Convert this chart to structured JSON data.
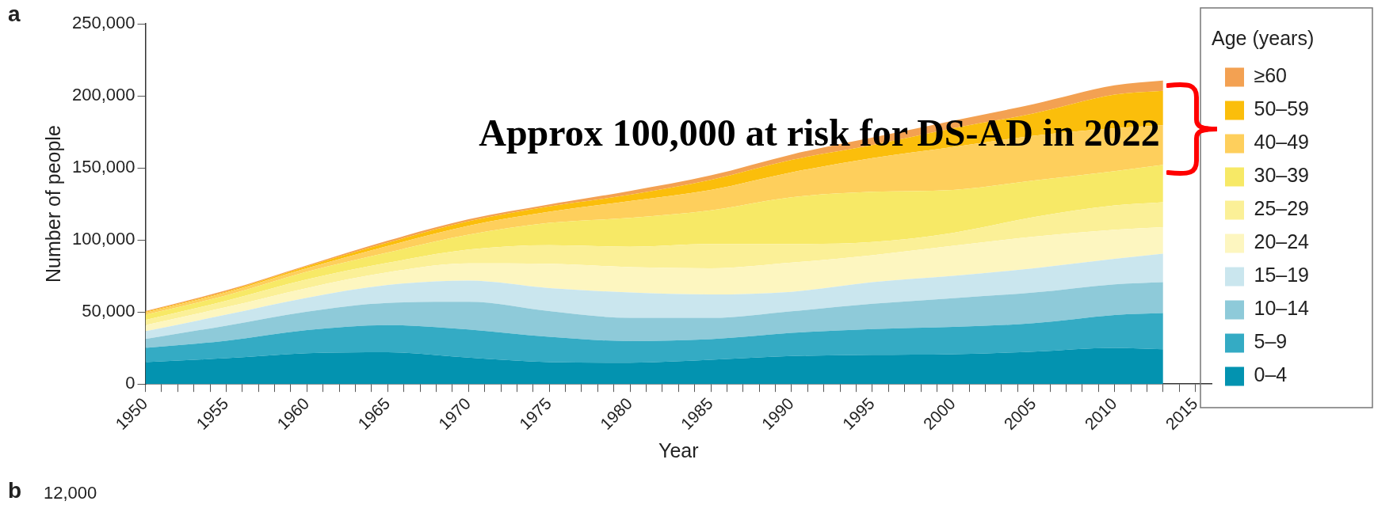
{
  "chart_data": {
    "type": "area",
    "stacked": true,
    "xlabel": "Year",
    "ylabel": "Number of people",
    "legend_title": "Age (years)",
    "legend": "right",
    "annotations": [
      "a",
      "Approx 100,000 at risk for DS-AD in 2022",
      "b",
      "12,000"
    ],
    "x": [
      1950,
      1955,
      1960,
      1965,
      1970,
      1975,
      1980,
      1985,
      1990,
      1995,
      2000,
      2005,
      2010,
      2013
    ],
    "xlim": [
      1950,
      2016
    ],
    "xticks": [
      1950,
      {
        "value": 1951,
        "label": null
      },
      {
        "value": 1952,
        "label": null
      },
      {
        "value": 1953,
        "label": null
      },
      {
        "value": 1954,
        "label": null
      },
      1955,
      {
        "value": 1956,
        "label": null
      },
      {
        "value": 1957,
        "label": null
      },
      {
        "value": 1958,
        "label": null
      },
      {
        "value": 1959,
        "label": null
      },
      1960,
      {
        "value": 1961,
        "label": null
      },
      {
        "value": 1962,
        "label": null
      },
      {
        "value": 1963,
        "label": null
      },
      {
        "value": 1964,
        "label": null
      },
      1965,
      {
        "value": 1966,
        "label": null
      },
      {
        "value": 1967,
        "label": null
      },
      {
        "value": 1968,
        "label": null
      },
      {
        "value": 1969,
        "label": null
      },
      1970,
      {
        "value": 1971,
        "label": null
      },
      {
        "value": 1972,
        "label": null
      },
      {
        "value": 1973,
        "label": null
      },
      {
        "value": 1974,
        "label": null
      },
      1975,
      {
        "value": 1976,
        "label": null
      },
      {
        "value": 1977,
        "label": null
      },
      {
        "value": 1978,
        "label": null
      },
      {
        "value": 1979,
        "label": null
      },
      1980,
      {
        "value": 1981,
        "label": null
      },
      {
        "value": 1982,
        "label": null
      },
      {
        "value": 1983,
        "label": null
      },
      {
        "value": 1984,
        "label": null
      },
      1985,
      {
        "value": 1986,
        "label": null
      },
      {
        "value": 1987,
        "label": null
      },
      {
        "value": 1988,
        "label": null
      },
      {
        "value": 1989,
        "label": null
      },
      1990,
      {
        "value": 1991,
        "label": null
      },
      {
        "value": 1992,
        "label": null
      },
      {
        "value": 1993,
        "label": null
      },
      {
        "value": 1994,
        "label": null
      },
      1995,
      {
        "value": 1996,
        "label": null
      },
      {
        "value": 1997,
        "label": null
      },
      {
        "value": 1998,
        "label": null
      },
      {
        "value": 1999,
        "label": null
      },
      2000,
      {
        "value": 2001,
        "label": null
      },
      {
        "value": 2002,
        "label": null
      },
      {
        "value": 2003,
        "label": null
      },
      {
        "value": 2004,
        "label": null
      },
      2005,
      {
        "value": 2006,
        "label": null
      },
      {
        "value": 2007,
        "label": null
      },
      {
        "value": 2008,
        "label": null
      },
      {
        "value": 2009,
        "label": null
      },
      2010,
      {
        "value": 2011,
        "label": null
      },
      {
        "value": 2012,
        "label": null
      },
      {
        "value": 2013,
        "label": null
      },
      {
        "value": 2014,
        "label": null
      },
      2015
    ],
    "ylim": [
      0,
      250000
    ],
    "yticks": [
      0,
      {
        "value": 50000,
        "label": "50,000"
      },
      {
        "value": 100000,
        "label": "100,000"
      },
      {
        "value": 150000,
        "label": "150,000"
      },
      {
        "value": 200000,
        "label": "200,000"
      },
      {
        "value": 250000,
        "label": "250,000"
      }
    ],
    "series": [
      {
        "name": "0–4",
        "color": "#0393b0",
        "values": [
          15200,
          17900,
          21400,
          22000,
          18300,
          15200,
          14800,
          16800,
          19400,
          20200,
          20700,
          22500,
          25100,
          24100
        ]
      },
      {
        "name": "5–9",
        "color": "#34abc4",
        "values": [
          9900,
          12100,
          16000,
          18900,
          19500,
          17500,
          15000,
          14300,
          16100,
          17900,
          18900,
          19700,
          22800,
          25100
        ]
      },
      {
        "name": "10–14",
        "color": "#8ecad9",
        "values": [
          6200,
          10500,
          12800,
          15400,
          19200,
          17900,
          16100,
          14800,
          15000,
          17600,
          20000,
          21300,
          21300,
          21500
        ]
      },
      {
        "name": "15–19",
        "color": "#cae6ee",
        "values": [
          5300,
          7600,
          9600,
          12400,
          14800,
          16000,
          17600,
          16300,
          13500,
          15000,
          15500,
          16800,
          17600,
          19700
        ]
      },
      {
        "name": "20–24",
        "color": "#fdf6c0",
        "values": [
          4300,
          5200,
          6800,
          8800,
          11900,
          16900,
          17600,
          18100,
          20200,
          18700,
          20800,
          22000,
          20200,
          18400
        ]
      },
      {
        "name": "25–29",
        "color": "#fbf097",
        "values": [
          3500,
          4500,
          6000,
          6600,
          9600,
          12900,
          14200,
          16900,
          13000,
          9100,
          9000,
          13500,
          16900,
          17400
        ]
      },
      {
        "name": "30–39",
        "color": "#f7e966",
        "values": [
          3700,
          3700,
          5300,
          7200,
          10300,
          15400,
          20000,
          23300,
          32400,
          34900,
          29800,
          25400,
          23800,
          25900
        ]
      },
      {
        "name": "40–49",
        "color": "#fecf5c",
        "values": [
          1400,
          2000,
          2500,
          4500,
          6200,
          7700,
          11700,
          14200,
          17300,
          23400,
          29800,
          31100,
          29800,
          27500
        ]
      },
      {
        "name": "50–59",
        "color": "#fbbe0b",
        "values": [
          500,
          600,
          1200,
          2300,
          3100,
          3700,
          4400,
          7000,
          8600,
          9000,
          13000,
          15500,
          23300,
          23800
        ]
      },
      {
        "name": "≥60",
        "color": "#f3a152",
        "values": [
          600,
          900,
          800,
          1400,
          1400,
          1400,
          2600,
          3100,
          3800,
          5200,
          5200,
          6500,
          6500,
          7200
        ]
      }
    ]
  }
}
